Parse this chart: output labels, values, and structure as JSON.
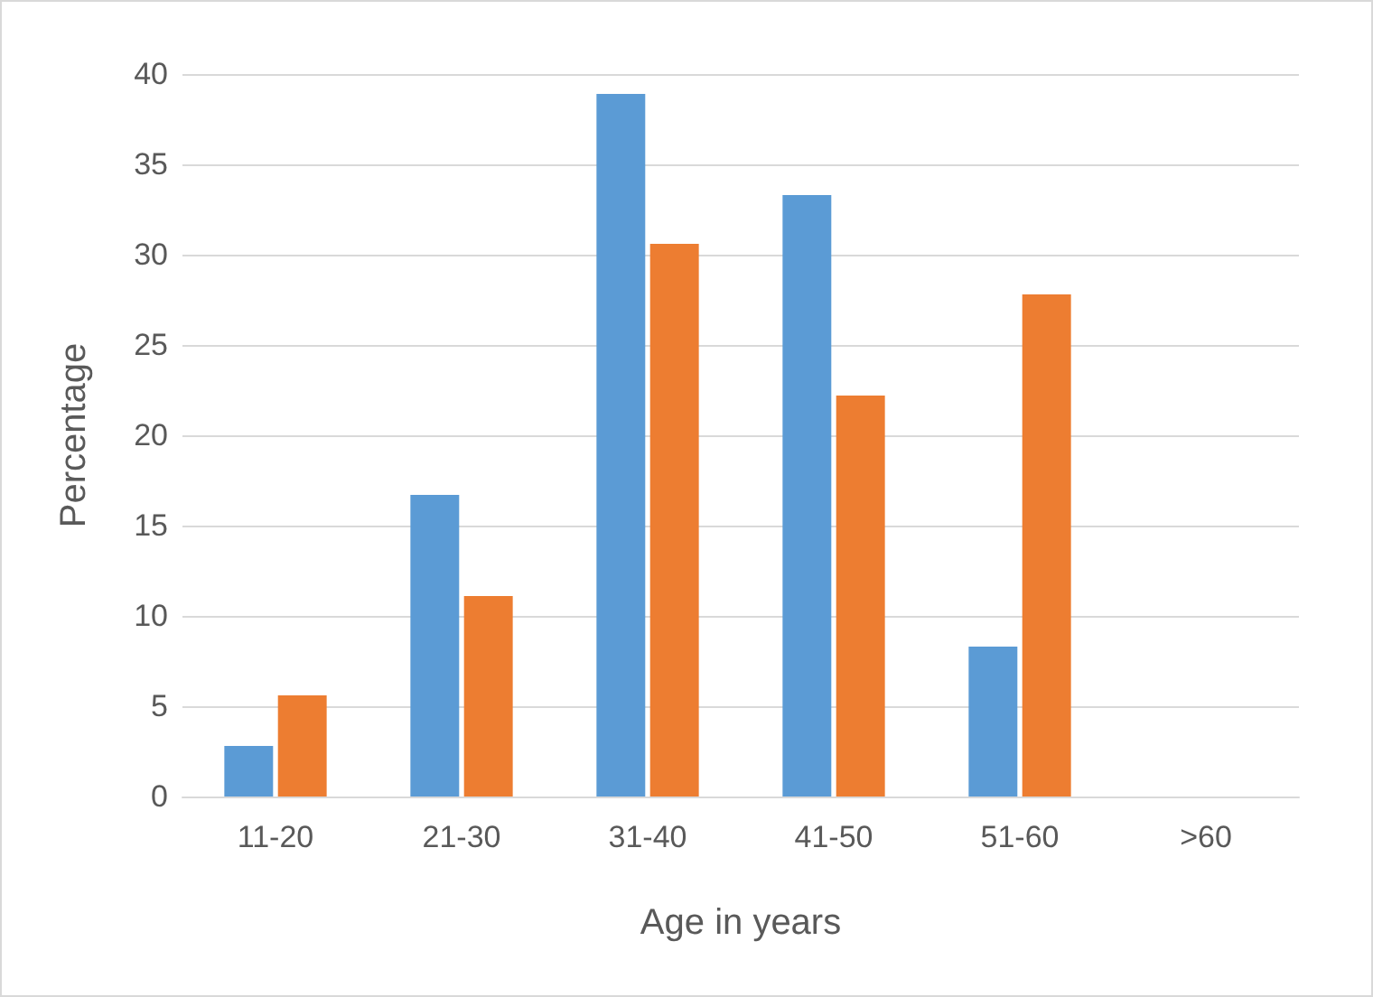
{
  "chart_data": {
    "type": "bar",
    "xlabel": "Age in years",
    "ylabel": "Percentage",
    "categories": [
      "11-20",
      "21-30",
      "31-40",
      "41-50",
      "51-60",
      ">60"
    ],
    "series": [
      {
        "color": "#5b9bd5",
        "values": [
          2.8,
          16.7,
          38.9,
          33.3,
          8.3,
          0
        ]
      },
      {
        "color": "#ed7d31",
        "values": [
          5.6,
          11.1,
          30.6,
          22.2,
          27.8,
          0
        ]
      }
    ],
    "ylim": [
      0,
      40
    ],
    "yticks": [
      0,
      5,
      10,
      15,
      20,
      25,
      30,
      35,
      40
    ],
    "grid": "y"
  }
}
